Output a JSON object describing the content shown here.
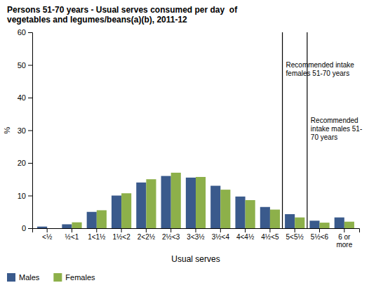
{
  "chart_data": {
    "type": "bar",
    "title": "Persons 51-70 years - Usual serves consumed per day  of\nvegetables and legumes/beans(a)(b), 2011-12",
    "x_label": "Usual serves",
    "y_label": "%",
    "categories": [
      "<½",
      "½<1",
      "1<1½",
      "1½<2",
      "2<2½",
      "2½<3",
      "3<3½",
      "3½<4",
      "4<4½",
      "4½<5",
      "5<5½",
      "5½<6",
      "6 or\nmore"
    ],
    "series": [
      {
        "name": "Males",
        "color": "#3A5A8C",
        "values": [
          0.5,
          1.2,
          5.0,
          10.0,
          14.0,
          16.0,
          15.5,
          13.0,
          9.7,
          6.5,
          4.3,
          2.3,
          3.3
        ]
      },
      {
        "name": "Females",
        "color": "#8DB04A",
        "values": [
          0.0,
          1.8,
          5.5,
          10.7,
          15.0,
          17.0,
          15.7,
          11.8,
          8.6,
          5.7,
          3.3,
          1.7,
          2.0
        ]
      }
    ],
    "ylim": [
      0,
      60
    ],
    "yticks": [
      0,
      10,
      20,
      30,
      40,
      50,
      60
    ],
    "grid": false,
    "legend": "lower left",
    "annotations": [
      {
        "text": "Recommended intake\nfemales 51-70 years",
        "after": "4½<5",
        "y": 51
      },
      {
        "text": "Recommended\nintake males 51-\n70 years",
        "after": "5<5½",
        "y": 34
      }
    ]
  }
}
